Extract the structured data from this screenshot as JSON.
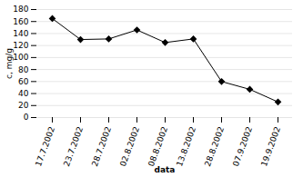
{
  "chart_data": {
    "type": "line",
    "categories": [
      "17.7.2002",
      "23.7.2002",
      "28.7.2002",
      "02.8.2002",
      "08.8.2002",
      "13.8.2002",
      "28.8.2002",
      "07.9.2002",
      "19.9.2002"
    ],
    "values": [
      165,
      130,
      131,
      146,
      125,
      131,
      60,
      47,
      26
    ],
    "xlabel": "data",
    "ylabel": "c, mg/g",
    "ylim": [
      0,
      180
    ],
    "yticks": [
      0,
      20,
      40,
      60,
      80,
      100,
      120,
      140,
      160,
      180
    ],
    "color": "#000000",
    "marker": "diamond",
    "grid": true
  }
}
